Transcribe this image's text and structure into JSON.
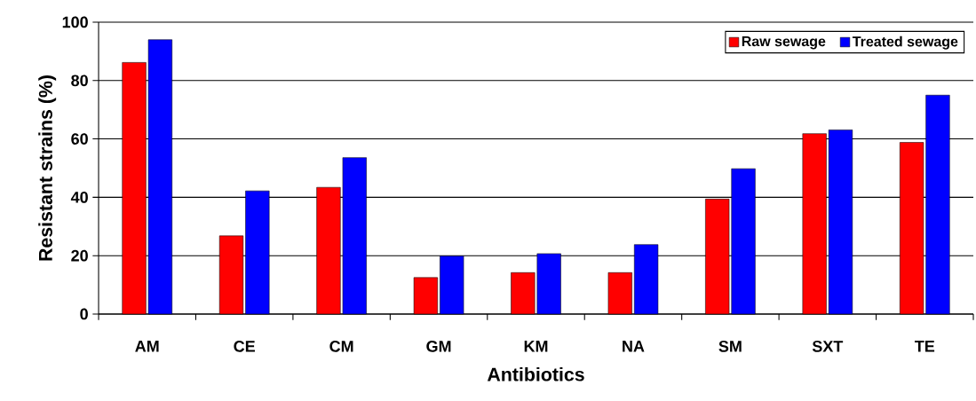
{
  "chart_data": {
    "type": "bar",
    "xlabel": "Antibiotics",
    "ylabel": "Resistant strains (%)",
    "categories": [
      "AM",
      "CE",
      "CM",
      "GM",
      "KM",
      "NA",
      "SM",
      "SXT",
      "TE"
    ],
    "series": [
      {
        "name": "Raw sewage",
        "color": "#ff0000",
        "values": [
          86.2,
          26.8,
          43.4,
          12.5,
          14.2,
          14.2,
          39.4,
          61.8,
          58.8
        ]
      },
      {
        "name": "Treated sewage",
        "color": "#0000ff",
        "values": [
          94.0,
          42.2,
          53.6,
          19.9,
          20.7,
          23.8,
          49.8,
          63.1,
          75.0
        ]
      }
    ],
    "ylim": [
      0,
      100
    ],
    "yticks": [
      0,
      20,
      40,
      60,
      80,
      100
    ],
    "grid": "y",
    "legend": "top right"
  }
}
